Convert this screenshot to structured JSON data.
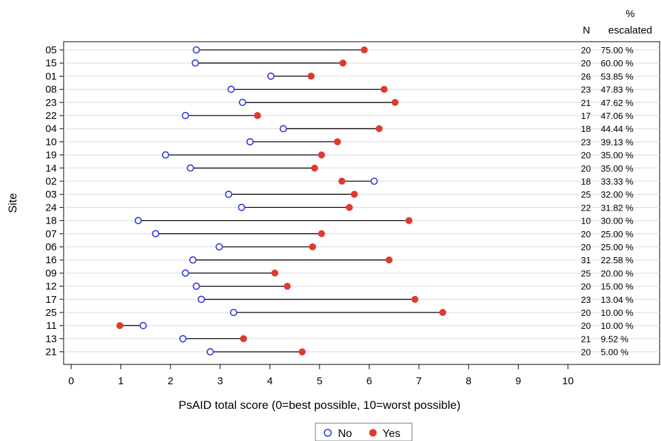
{
  "chart_data": {
    "type": "dumbbell",
    "xlabel": "PsAID total score (0=best possible, 10=worst possible)",
    "ylabel": "Site",
    "xlim": [
      0,
      10
    ],
    "xticks": [
      "0",
      "1",
      "2",
      "3",
      "4",
      "5",
      "6",
      "7",
      "8",
      "9",
      "10"
    ],
    "grid": "horizontal",
    "legend_position": "bottom-center",
    "right_headers": {
      "n": "N",
      "pct_line1": "%",
      "pct_line2": "escalated"
    },
    "series": [
      {
        "name": "No",
        "marker": "open-circle",
        "color": "#2b36d9"
      },
      {
        "name": "Yes",
        "marker": "filled-circle",
        "color": "#e03a2f"
      }
    ],
    "rows": [
      {
        "site": "05",
        "no": 2.52,
        "yes": 5.9,
        "n": "20",
        "pct": "75.00 %"
      },
      {
        "site": "15",
        "no": 2.5,
        "yes": 5.47,
        "n": "20",
        "pct": "60.00 %"
      },
      {
        "site": "01",
        "no": 4.02,
        "yes": 4.83,
        "n": "26",
        "pct": "53.85 %"
      },
      {
        "site": "08",
        "no": 3.22,
        "yes": 6.3,
        "n": "23",
        "pct": "47.83 %"
      },
      {
        "site": "23",
        "no": 3.45,
        "yes": 6.52,
        "n": "21",
        "pct": "47.62 %"
      },
      {
        "site": "22",
        "no": 2.3,
        "yes": 3.75,
        "n": "17",
        "pct": "47.06 %"
      },
      {
        "site": "04",
        "no": 4.27,
        "yes": 6.2,
        "n": "18",
        "pct": "44.44 %"
      },
      {
        "site": "10",
        "no": 3.6,
        "yes": 5.36,
        "n": "23",
        "pct": "39.13 %"
      },
      {
        "site": "19",
        "no": 1.9,
        "yes": 5.04,
        "n": "20",
        "pct": "35.00 %"
      },
      {
        "site": "14",
        "no": 2.4,
        "yes": 4.9,
        "n": "20",
        "pct": "35.00 %"
      },
      {
        "site": "02",
        "no": 6.1,
        "yes": 5.45,
        "n": "18",
        "pct": "33.33 %"
      },
      {
        "site": "03",
        "no": 3.17,
        "yes": 5.7,
        "n": "25",
        "pct": "32.00 %"
      },
      {
        "site": "24",
        "no": 3.43,
        "yes": 5.6,
        "n": "22",
        "pct": "31.82 %"
      },
      {
        "site": "18",
        "no": 1.35,
        "yes": 6.8,
        "n": "10",
        "pct": "30.00 %"
      },
      {
        "site": "07",
        "no": 1.7,
        "yes": 5.04,
        "n": "20",
        "pct": "25.00 %"
      },
      {
        "site": "06",
        "no": 2.98,
        "yes": 4.86,
        "n": "20",
        "pct": "25.00 %"
      },
      {
        "site": "16",
        "no": 2.45,
        "yes": 6.4,
        "n": "31",
        "pct": "22.58 %"
      },
      {
        "site": "09",
        "no": 2.3,
        "yes": 4.1,
        "n": "25",
        "pct": "20.00 %"
      },
      {
        "site": "12",
        "no": 2.52,
        "yes": 4.35,
        "n": "20",
        "pct": "15.00 %"
      },
      {
        "site": "17",
        "no": 2.62,
        "yes": 6.92,
        "n": "23",
        "pct": "13.04 %"
      },
      {
        "site": "25",
        "no": 3.27,
        "yes": 7.48,
        "n": "20",
        "pct": "10.00 %"
      },
      {
        "site": "11",
        "no": 1.45,
        "yes": 0.98,
        "n": "20",
        "pct": "10.00 %"
      },
      {
        "site": "13",
        "no": 2.25,
        "yes": 3.47,
        "n": "21",
        "pct": "9.52 %"
      },
      {
        "site": "21",
        "no": 2.8,
        "yes": 4.65,
        "n": "20",
        "pct": "5.00 %"
      }
    ]
  }
}
